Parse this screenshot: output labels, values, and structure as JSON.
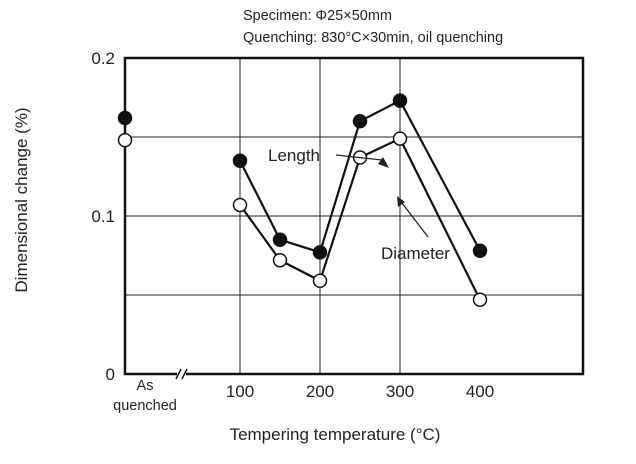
{
  "chart_data": {
    "type": "line",
    "notes": [
      "Specimen: Φ25×50mm",
      "Quenching: 830°C×30min, oil quenching"
    ],
    "xlabel": "Tempering temperature (°C)",
    "ylabel": "Dimensional change (%)",
    "x_tick_labels": [
      "As quenched",
      "100",
      "200",
      "300",
      "400"
    ],
    "y_tick_labels": [
      "0",
      "0.1",
      "0.2"
    ],
    "ylim": [
      0,
      0.2
    ],
    "x_break_marker": "≈",
    "grid": true,
    "series": [
      {
        "name": "Length",
        "marker": "filled-circle",
        "x": [
          "As quenched",
          100,
          150,
          200,
          250,
          300,
          400
        ],
        "y": [
          0.162,
          0.135,
          0.085,
          0.077,
          0.16,
          0.173,
          0.078
        ]
      },
      {
        "name": "Diameter",
        "marker": "open-circle",
        "x": [
          "As quenched",
          100,
          150,
          200,
          250,
          300,
          400
        ],
        "y": [
          0.148,
          0.107,
          0.072,
          0.059,
          0.137,
          0.149,
          0.047
        ]
      }
    ]
  }
}
